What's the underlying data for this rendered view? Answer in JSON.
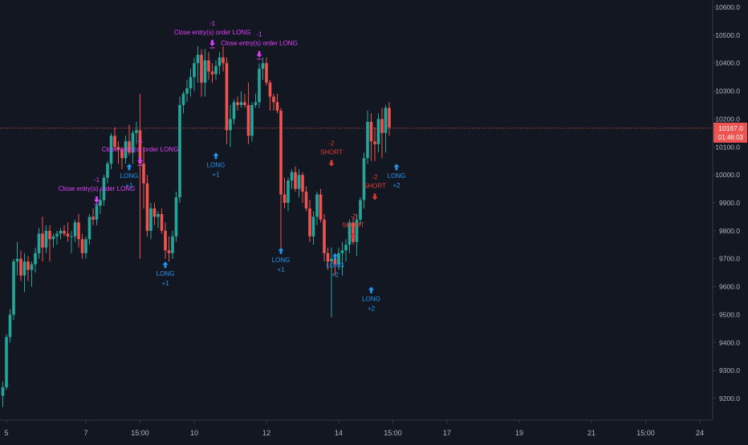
{
  "colors": {
    "background": "#131722",
    "up": "#26a69a",
    "down": "#ef5350",
    "axis_text": "#b2b5be",
    "axis_line": "#363a45",
    "price_line": "#ef5350",
    "long_marker": "#2196f3",
    "short_marker": "#e53935",
    "close_marker": "#e040fb",
    "volume_mark": "#2962ff"
  },
  "chart_data": {
    "type": "candlestick",
    "grid": false,
    "y_axis": {
      "position": "right",
      "ylim": [
        9120,
        10650
      ],
      "ticks": [
        9200,
        9300,
        9400,
        9500,
        9600,
        9700,
        9800,
        9900,
        10000,
        10100,
        10200,
        10300,
        10400,
        10500,
        10600
      ],
      "tick_labels": [
        "9200.0",
        "9300.0",
        "9400.0",
        "9500.0",
        "9600.0",
        "9700.0",
        "9800.0",
        "9900.0",
        "10000.0",
        "10100.0",
        "10200.0",
        "10300.0",
        "10400.0",
        "10500.0",
        "10600.0"
      ]
    },
    "x_axis": {
      "ticks": [
        {
          "label": "5",
          "t": 1
        },
        {
          "label": "7",
          "t": 23
        },
        {
          "label": "15:00",
          "t": 38
        },
        {
          "label": "10",
          "t": 53
        },
        {
          "label": "12",
          "t": 73
        },
        {
          "label": "14",
          "t": 93
        },
        {
          "label": "15:00",
          "t": 108
        },
        {
          "label": "17",
          "t": 123
        },
        {
          "label": "19",
          "t": 143
        },
        {
          "label": "21",
          "t": 163
        },
        {
          "label": "15:00",
          "t": 178
        },
        {
          "label": "24",
          "t": 193
        }
      ]
    },
    "current_price": {
      "value": 10167.0,
      "label": "10167.0",
      "countdown": "01:46:03"
    },
    "candles": [
      [
        9210,
        9260,
        9170,
        9240
      ],
      [
        9240,
        9430,
        9230,
        9420
      ],
      [
        9420,
        9520,
        9400,
        9500
      ],
      [
        9500,
        9700,
        9480,
        9690
      ],
      [
        9690,
        9760,
        9640,
        9700
      ],
      [
        9700,
        9730,
        9620,
        9640
      ],
      [
        9640,
        9720,
        9580,
        9690
      ],
      [
        9690,
        9710,
        9620,
        9660
      ],
      [
        9660,
        9690,
        9600,
        9680
      ],
      [
        9680,
        9740,
        9650,
        9720
      ],
      [
        9720,
        9810,
        9700,
        9790
      ],
      [
        9790,
        9850,
        9690,
        9740
      ],
      [
        9740,
        9820,
        9720,
        9800
      ],
      [
        9800,
        9820,
        9690,
        9770
      ],
      [
        9770,
        9790,
        9740,
        9780
      ],
      [
        9780,
        9800,
        9750,
        9790
      ],
      [
        9790,
        9810,
        9770,
        9800
      ],
      [
        9800,
        9820,
        9780,
        9790
      ],
      [
        9790,
        9830,
        9760,
        9780
      ],
      [
        9780,
        9800,
        9720,
        9780
      ],
      [
        9780,
        9840,
        9760,
        9830
      ],
      [
        9830,
        9860,
        9740,
        9770
      ],
      [
        9770,
        9790,
        9700,
        9720
      ],
      [
        9720,
        9780,
        9700,
        9770
      ],
      [
        9770,
        9860,
        9750,
        9850
      ],
      [
        9850,
        9880,
        9820,
        9840
      ],
      [
        9840,
        9900,
        9820,
        9890
      ],
      [
        9890,
        9950,
        9860,
        9910
      ],
      [
        9910,
        10000,
        9890,
        9990
      ],
      [
        9990,
        10050,
        9970,
        10040
      ],
      [
        10040,
        10150,
        10020,
        10140
      ],
      [
        10140,
        10170,
        10090,
        10100
      ],
      [
        10100,
        10120,
        10040,
        10090
      ],
      [
        10090,
        10100,
        10020,
        10060
      ],
      [
        10060,
        10140,
        10040,
        10120
      ],
      [
        10120,
        10180,
        10070,
        10080
      ],
      [
        10080,
        10160,
        10040,
        10150
      ],
      [
        10150,
        10190,
        10110,
        10160
      ],
      [
        10160,
        10290,
        9700,
        10040
      ],
      [
        10040,
        10100,
        9880,
        9970
      ],
      [
        9970,
        10000,
        9780,
        9800
      ],
      [
        9800,
        9900,
        9770,
        9880
      ],
      [
        9880,
        9900,
        9820,
        9850
      ],
      [
        9850,
        9870,
        9810,
        9860
      ],
      [
        9860,
        9880,
        9790,
        9800
      ],
      [
        9800,
        9830,
        9700,
        9730
      ],
      [
        9730,
        9780,
        9690,
        9720
      ],
      [
        9720,
        9800,
        9700,
        9780
      ],
      [
        9780,
        9940,
        9760,
        9920
      ],
      [
        9920,
        10280,
        9900,
        10250
      ],
      [
        10250,
        10300,
        10220,
        10290
      ],
      [
        10290,
        10340,
        10260,
        10310
      ],
      [
        10310,
        10380,
        10280,
        10350
      ],
      [
        10350,
        10420,
        10300,
        10400
      ],
      [
        10400,
        10460,
        10330,
        10430
      ],
      [
        10430,
        10450,
        10280,
        10330
      ],
      [
        10330,
        10450,
        10280,
        10410
      ],
      [
        10410,
        10440,
        10340,
        10370
      ],
      [
        10370,
        10400,
        10330,
        10360
      ],
      [
        10360,
        10410,
        10340,
        10390
      ],
      [
        10390,
        10440,
        10360,
        10420
      ],
      [
        10420,
        10460,
        10370,
        10400
      ],
      [
        10400,
        10420,
        10110,
        10160
      ],
      [
        10160,
        10250,
        10100,
        10200
      ],
      [
        10200,
        10270,
        10180,
        10260
      ],
      [
        10260,
        10280,
        10230,
        10250
      ],
      [
        10250,
        10300,
        10240,
        10260
      ],
      [
        10260,
        10290,
        10240,
        10250
      ],
      [
        10250,
        10330,
        10110,
        10140
      ],
      [
        10140,
        10260,
        10120,
        10250
      ],
      [
        10250,
        10290,
        10240,
        10260
      ],
      [
        10260,
        10400,
        10240,
        10380
      ],
      [
        10380,
        10420,
        10340,
        10400
      ],
      [
        10400,
        10420,
        10320,
        10330
      ],
      [
        10330,
        10340,
        10230,
        10280
      ],
      [
        10280,
        10290,
        10230,
        10260
      ],
      [
        10260,
        10290,
        10220,
        10230
      ],
      [
        10230,
        10240,
        9740,
        9930
      ],
      [
        9930,
        9990,
        9880,
        9900
      ],
      [
        9900,
        9990,
        9870,
        9980
      ],
      [
        9980,
        10020,
        9950,
        10010
      ],
      [
        10010,
        10030,
        9940,
        9950
      ],
      [
        9950,
        10020,
        9920,
        10000
      ],
      [
        10000,
        10010,
        9900,
        9940
      ],
      [
        9940,
        9960,
        9870,
        9880
      ],
      [
        9880,
        9910,
        9760,
        9780
      ],
      [
        9780,
        9870,
        9750,
        9850
      ],
      [
        9850,
        9940,
        9820,
        9930
      ],
      [
        9930,
        9950,
        9830,
        9840
      ],
      [
        9840,
        9860,
        9690,
        9720
      ],
      [
        9720,
        9740,
        9660,
        9690
      ],
      [
        9690,
        9740,
        9490,
        9700
      ],
      [
        9700,
        9720,
        9640,
        9680
      ],
      [
        9680,
        9740,
        9660,
        9720
      ],
      [
        9720,
        9760,
        9640,
        9730
      ],
      [
        9730,
        9770,
        9690,
        9750
      ],
      [
        9750,
        9840,
        9720,
        9830
      ],
      [
        9830,
        9850,
        9750,
        9760
      ],
      [
        9760,
        9860,
        9710,
        9840
      ],
      [
        9840,
        9920,
        9820,
        9910
      ],
      [
        9910,
        10080,
        9880,
        10060
      ],
      [
        10060,
        10230,
        10040,
        10190
      ],
      [
        10190,
        10220,
        10050,
        10120
      ],
      [
        10120,
        10170,
        10050,
        10110
      ],
      [
        10110,
        10220,
        10080,
        10200
      ],
      [
        10200,
        10240,
        10060,
        10150
      ],
      [
        10150,
        10250,
        10080,
        10240
      ],
      [
        10240,
        10260,
        10140,
        10170
      ]
    ],
    "annotations": [
      {
        "kind": "close",
        "i": 26,
        "label": "Close entry(s) order LONG",
        "qty": "-1",
        "price": 9900
      },
      {
        "kind": "long",
        "i": 35,
        "label": "LONG",
        "qty": "+1",
        "price": 10040
      },
      {
        "kind": "close",
        "i": 38,
        "label": "Close entry(s) order LONG",
        "qty": "-1",
        "price": 10040
      },
      {
        "kind": "long",
        "i": 45,
        "label": "LONG",
        "qty": "+1",
        "price": 9690
      },
      {
        "kind": "close",
        "i": 58,
        "label": "Close entry(s) order LONG",
        "qty": "-1",
        "price": 10460
      },
      {
        "kind": "long",
        "i": 59,
        "label": "LONG",
        "qty": "+1",
        "price": 10080
      },
      {
        "kind": "close",
        "i": 71,
        "label": "Close entry(s) order LONG",
        "qty": "-1",
        "price": 10420
      },
      {
        "kind": "long",
        "i": 77,
        "label": "LONG",
        "qty": "+1",
        "price": 9740
      },
      {
        "kind": "short",
        "i": 91,
        "label": "SHORT",
        "qty": "-2",
        "price": 10030
      },
      {
        "kind": "long",
        "i": 92,
        "label": "LONG",
        "qty": "+2",
        "price": 9720
      },
      {
        "kind": "short",
        "i": 97,
        "label": "SHORT",
        "qty": "-2",
        "price": 9770
      },
      {
        "kind": "long",
        "i": 102,
        "label": "LONG",
        "qty": "+2",
        "price": 9600
      },
      {
        "kind": "short",
        "i": 103,
        "label": "SHORT",
        "qty": "-2",
        "price": 9910
      },
      {
        "kind": "long",
        "i": 109,
        "label": "LONG",
        "qty": "+2",
        "price": 10040
      }
    ]
  }
}
